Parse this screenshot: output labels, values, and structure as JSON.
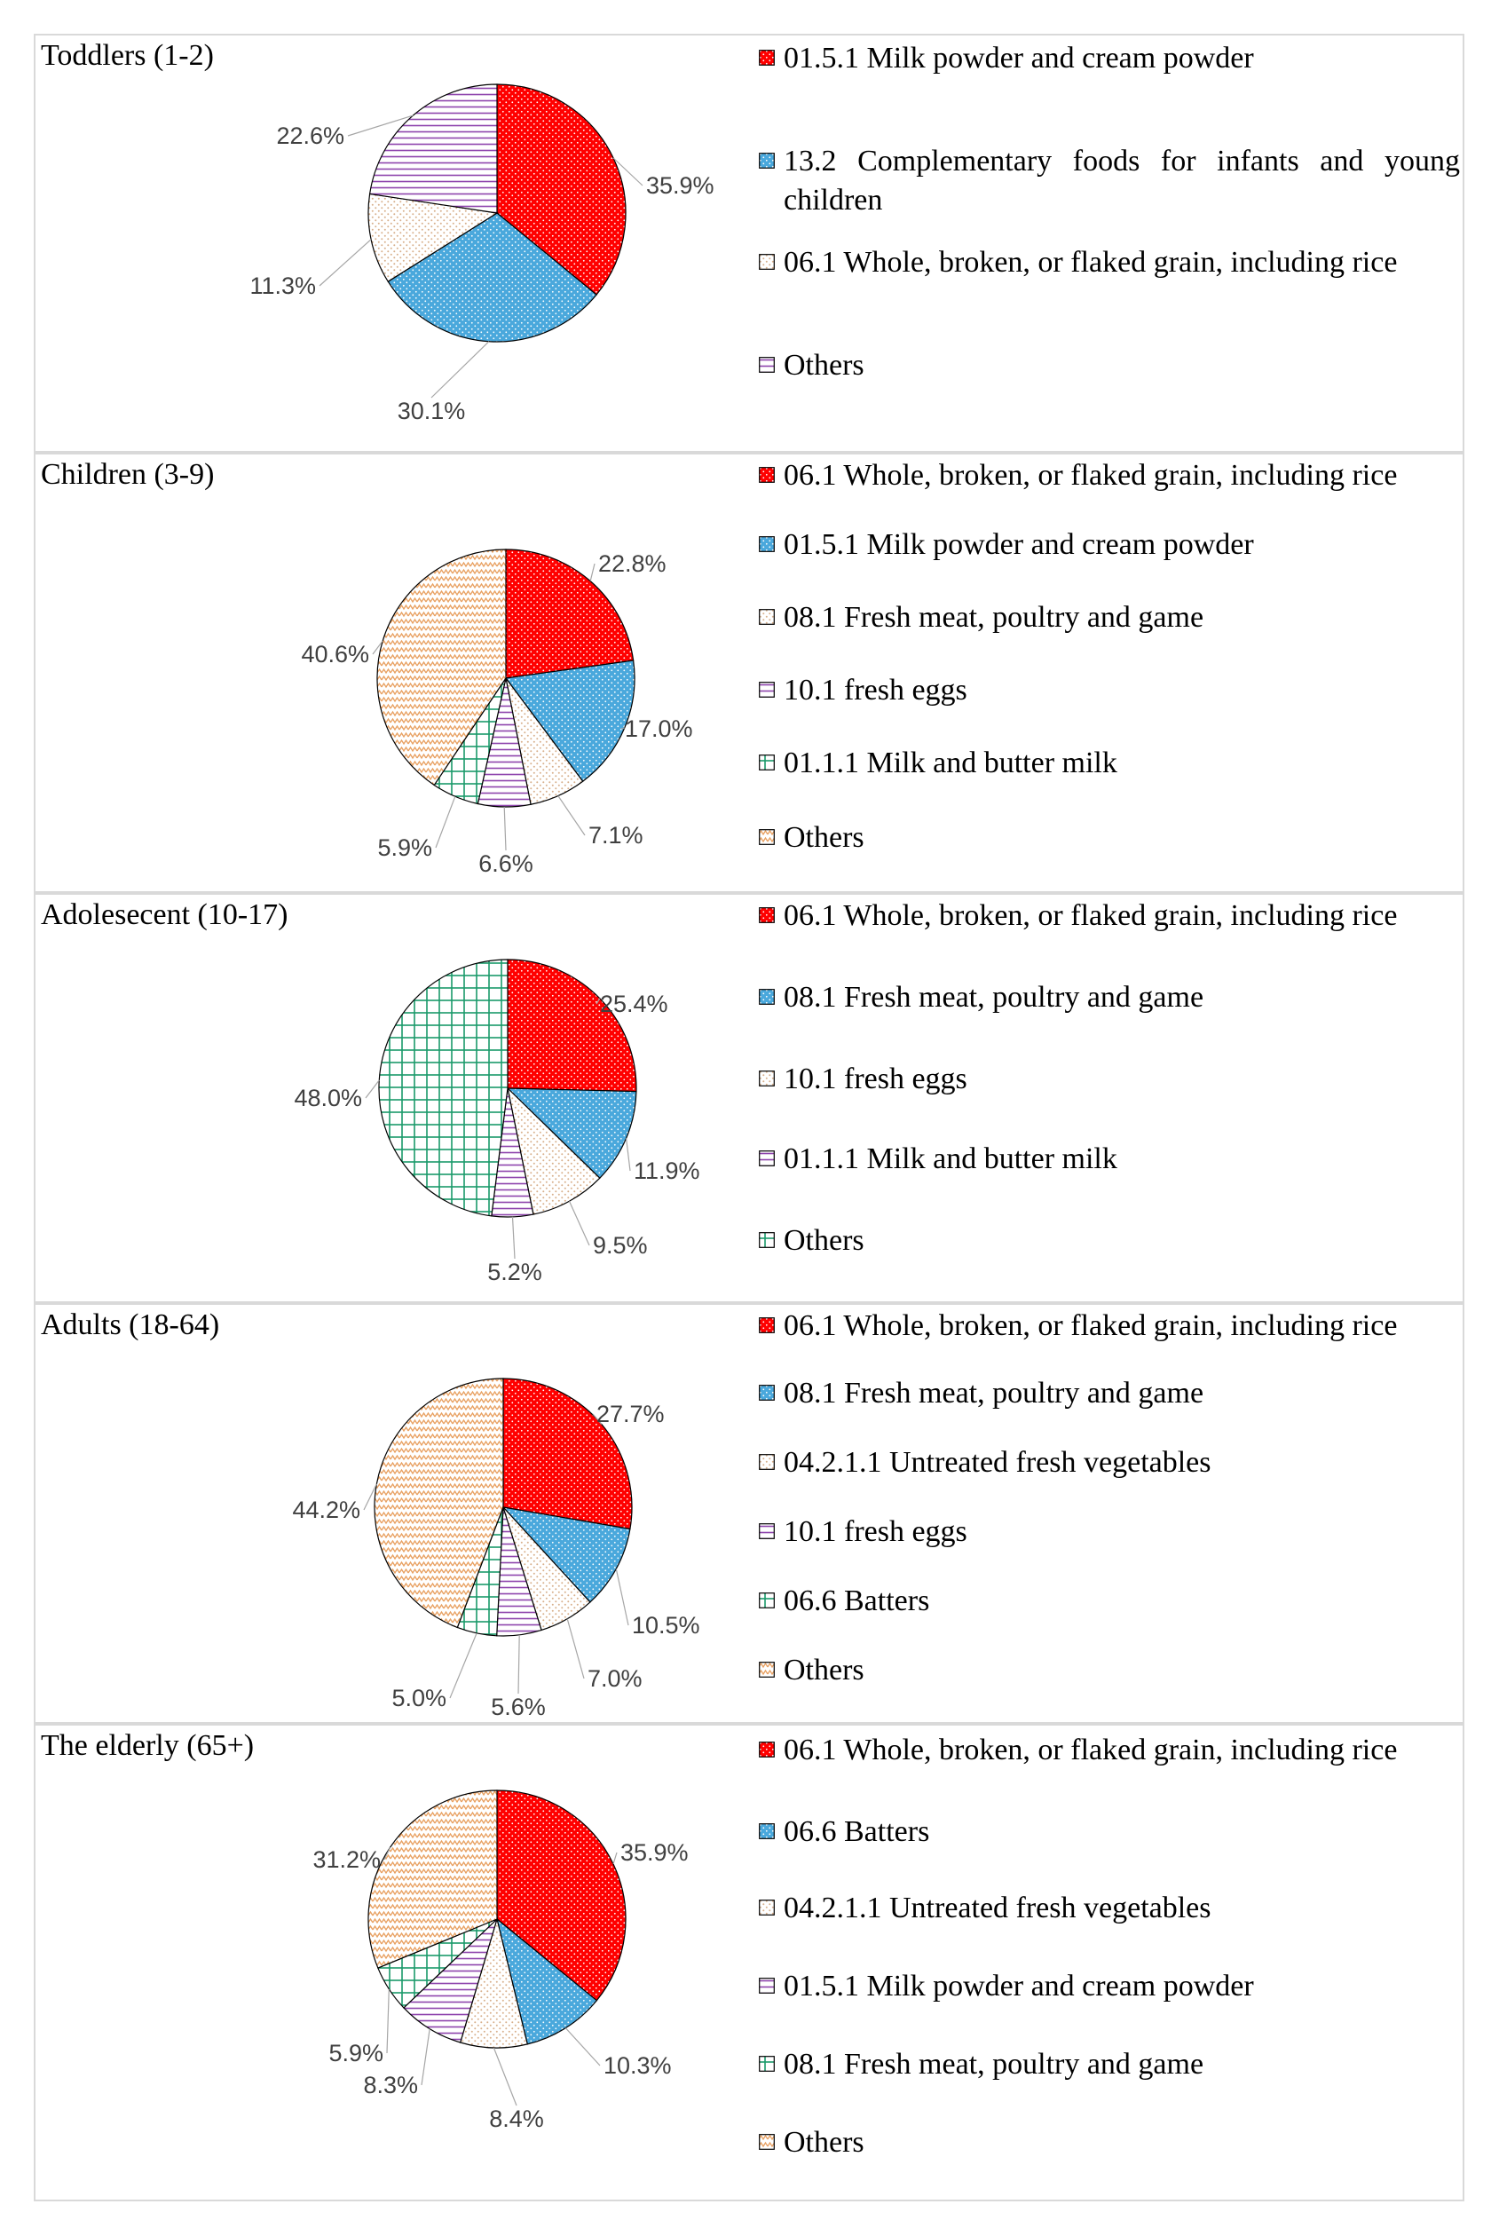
{
  "chart_data": [
    {
      "type": "pie",
      "title": "Toddlers (1-2)",
      "categories": [
        "01.5.1 Milk powder and cream powder",
        "13.2 Complementary foods for infants and young children",
        "06.1 Whole, broken, or flaked grain, including rice",
        "Others"
      ],
      "values": [
        35.9,
        30.1,
        11.3,
        22.6
      ],
      "labels": [
        "35.9%",
        "30.1%",
        "11.3%",
        "22.6%"
      ],
      "patterns": [
        "red",
        "blue",
        "tan",
        "purple"
      ]
    },
    {
      "type": "pie",
      "title": "Children (3-9)",
      "categories": [
        "06.1 Whole, broken, or flaked grain, including rice",
        "01.5.1 Milk powder and cream powder",
        "08.1 Fresh meat, poultry and game",
        "10.1 fresh eggs",
        "01.1.1 Milk and butter milk",
        "Others"
      ],
      "values": [
        22.8,
        17.0,
        7.1,
        6.6,
        5.9,
        40.6
      ],
      "labels": [
        "22.8%",
        "17.0%",
        "7.1%",
        "6.6%",
        "5.9%",
        "40.6%"
      ],
      "patterns": [
        "red",
        "blue",
        "tan",
        "purple",
        "green",
        "orange"
      ]
    },
    {
      "type": "pie",
      "title": "Adolesecent (10-17)",
      "categories": [
        "06.1 Whole, broken, or flaked grain, including rice",
        "08.1 Fresh meat, poultry and game",
        "10.1 fresh eggs",
        "01.1.1 Milk and butter milk",
        "Others"
      ],
      "values": [
        25.4,
        11.9,
        9.5,
        5.2,
        48.0
      ],
      "labels": [
        "25.4%",
        "11.9%",
        "9.5%",
        "5.2%",
        "48.0%"
      ],
      "patterns": [
        "red",
        "blue",
        "tan",
        "purple",
        "green"
      ]
    },
    {
      "type": "pie",
      "title": "Adults (18-64)",
      "categories": [
        "06.1 Whole, broken, or flaked grain, including rice",
        "08.1 Fresh meat, poultry and game",
        "04.2.1.1 Untreated fresh vegetables",
        "10.1 fresh eggs",
        "06.6 Batters",
        "Others"
      ],
      "values": [
        27.7,
        10.5,
        7.0,
        5.6,
        5.0,
        44.2
      ],
      "labels": [
        "27.7%",
        "10.5%",
        "7.0%",
        "5.6%",
        "5.0%",
        "44.2%"
      ],
      "patterns": [
        "red",
        "blue",
        "tan",
        "purple",
        "green",
        "orange"
      ]
    },
    {
      "type": "pie",
      "title": "The elderly (65+)",
      "categories": [
        "06.1 Whole, broken, or flaked grain, including rice",
        "06.6 Batters",
        "04.2.1.1 Untreated fresh vegetables",
        "01.5.1 Milk powder and cream powder",
        "08.1 Fresh meat, poultry and game",
        "Others"
      ],
      "values": [
        35.9,
        10.3,
        8.4,
        8.3,
        5.9,
        31.2
      ],
      "labels": [
        "35.9%",
        "10.3%",
        "8.4%",
        "8.3%",
        "5.9%",
        "31.2%"
      ],
      "patterns": [
        "red",
        "blue",
        "tan",
        "purple",
        "green",
        "orange"
      ]
    }
  ],
  "colors": {
    "red": "#ff0000",
    "blue": "#4aa8dc",
    "tan": "#d8b08c",
    "purple": "#8e44ad",
    "green": "#1a9a6a",
    "orange": "#e8a060",
    "border": "#d9d9d9",
    "leader": "#a6a6a6",
    "label": "#404040"
  }
}
